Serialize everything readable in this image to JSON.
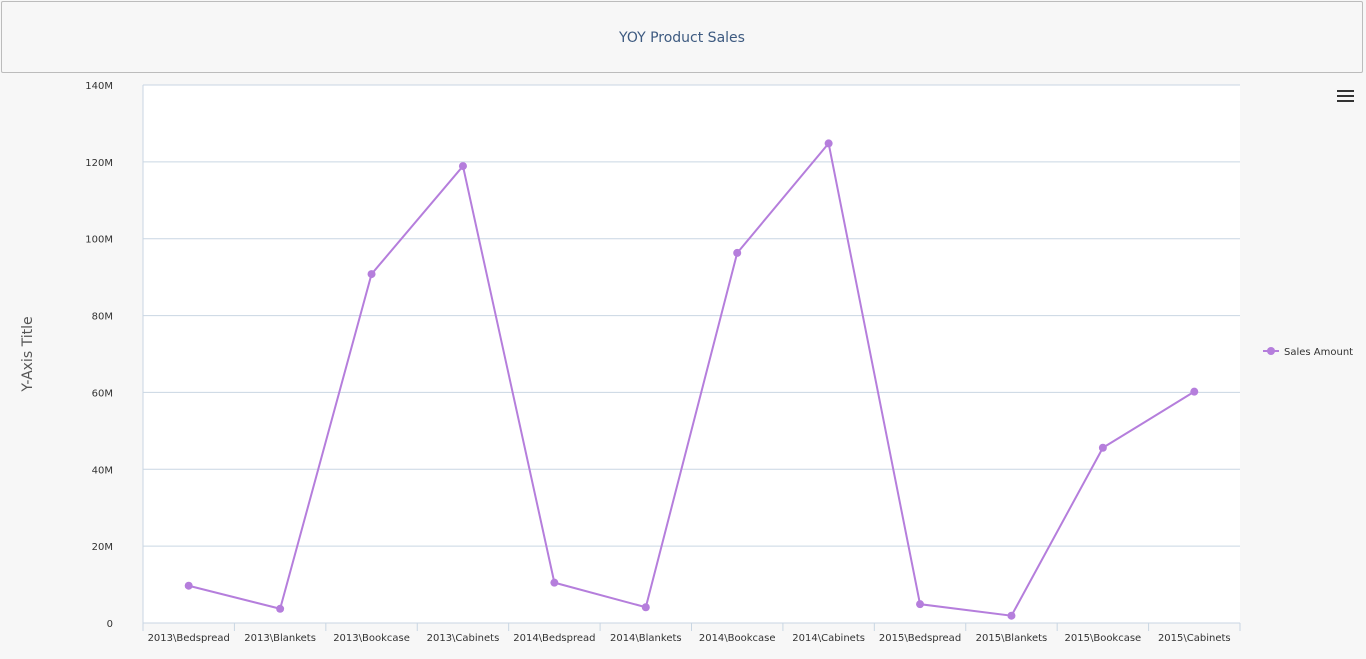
{
  "header": {
    "title": "YOY Product Sales"
  },
  "menu": {
    "icon": "hamburger-menu-icon"
  },
  "chart_data": {
    "type": "line",
    "title": "YOY Product Sales",
    "xlabel": "",
    "ylabel": "Y-Axis Title",
    "ylim": [
      0,
      140000000
    ],
    "yticks": [
      {
        "value": 0,
        "label": "0"
      },
      {
        "value": 20000000,
        "label": "20M"
      },
      {
        "value": 40000000,
        "label": "40M"
      },
      {
        "value": 60000000,
        "label": "60M"
      },
      {
        "value": 80000000,
        "label": "80M"
      },
      {
        "value": 100000000,
        "label": "100M"
      },
      {
        "value": 120000000,
        "label": "120M"
      },
      {
        "value": 140000000,
        "label": "140M"
      }
    ],
    "categories": [
      "2013\\Bedspread",
      "2013\\Blankets",
      "2013\\Bookcase",
      "2013\\Cabinets",
      "2014\\Bedspread",
      "2014\\Blankets",
      "2014\\Bookcase",
      "2014\\Cabinets",
      "2015\\Bedspread",
      "2015\\Blankets",
      "2015\\Bookcase",
      "2015\\Cabinets"
    ],
    "series": [
      {
        "name": "Sales Amount",
        "color": "#b57edc",
        "values": [
          9700000,
          3700000,
          90800000,
          118900000,
          10500000,
          4100000,
          96300000,
          124800000,
          4900000,
          1900000,
          45600000,
          60200000
        ]
      }
    ],
    "grid": true,
    "legend_position": "right"
  }
}
